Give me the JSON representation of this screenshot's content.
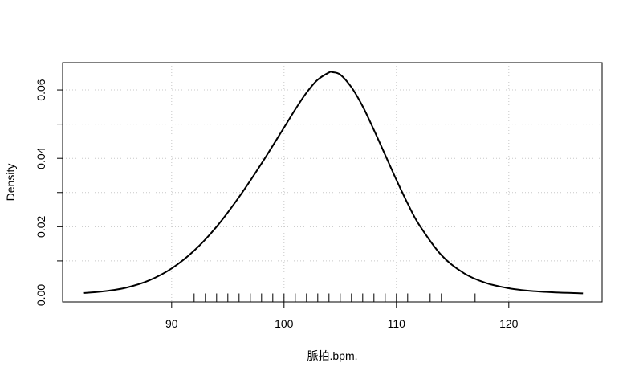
{
  "chart_data": {
    "type": "line",
    "xlabel": "脈拍.bpm.",
    "ylabel": "Density",
    "xlim": [
      80.3,
      128.3
    ],
    "ylim": [
      -0.002,
      0.068
    ],
    "x_ticks": [
      90,
      100,
      110,
      120
    ],
    "x_tick_labels": [
      "90",
      "100",
      "110",
      "120"
    ],
    "y_ticks": [
      0.0,
      0.02,
      0.04,
      0.06
    ],
    "y_tick_labels": [
      "0.00",
      "0.02",
      "0.04",
      "0.06"
    ],
    "y_minor_ticks": [
      0.01,
      0.03,
      0.05
    ],
    "grid": true,
    "series": [
      {
        "x": [
          82.2,
          84,
          86,
          88,
          90,
          92,
          94,
          96,
          98,
          100,
          101,
          102,
          103,
          104,
          104.3,
          105,
          106,
          107,
          108,
          109,
          110,
          111,
          112,
          114,
          116,
          118,
          120,
          122,
          124,
          126.6
        ],
        "y": [
          0.0006,
          0.0011,
          0.0022,
          0.0043,
          0.0078,
          0.013,
          0.02,
          0.0287,
          0.0385,
          0.049,
          0.0543,
          0.0592,
          0.063,
          0.0651,
          0.0652,
          0.0645,
          0.0608,
          0.0552,
          0.0483,
          0.041,
          0.0337,
          0.0268,
          0.0207,
          0.0117,
          0.0064,
          0.0035,
          0.002,
          0.0012,
          0.0008,
          0.0005
        ]
      }
    ],
    "rug": [
      92,
      93,
      94,
      95,
      96,
      97,
      98,
      99,
      100,
      101,
      102,
      103,
      104,
      105,
      106,
      107,
      108,
      109,
      110,
      111,
      113,
      114,
      117
    ]
  }
}
